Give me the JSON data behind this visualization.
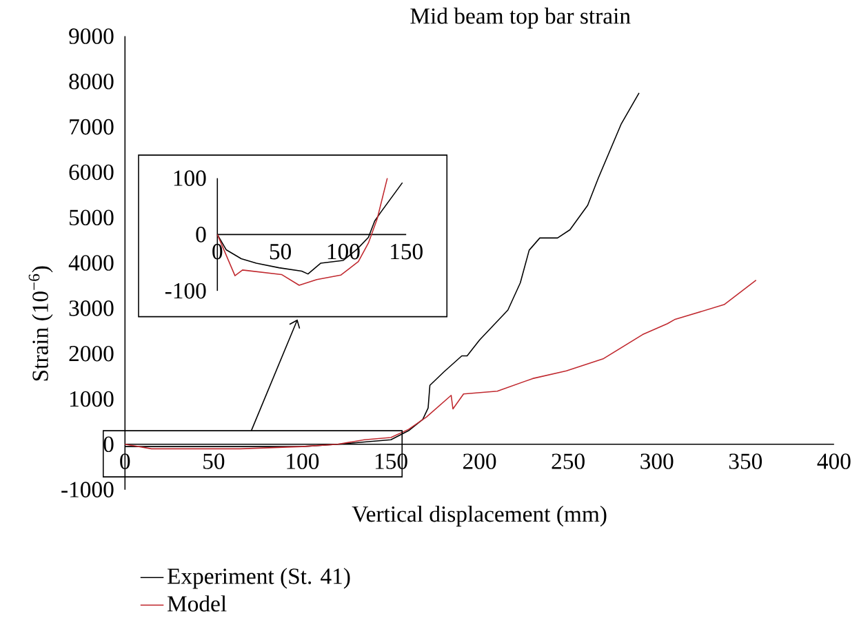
{
  "chart_data": [
    {
      "type": "line",
      "title": "Mid beam top bar strain",
      "xlabel": "Vertical displacement (mm)",
      "ylabel": "Strain (10$^{−6}$)",
      "xlim": [
        0,
        400
      ],
      "ylim": [
        -1000,
        9000
      ],
      "xticks": [
        0,
        50,
        100,
        150,
        200,
        250,
        300,
        350,
        400
      ],
      "yticks": [
        -1000,
        0,
        1000,
        2000,
        3000,
        4000,
        5000,
        6000,
        7000,
        8000,
        9000
      ],
      "legend": "bottom",
      "series": [
        {
          "name": "Experiment (St. 41)",
          "color": "#000000",
          "x": [
            0,
            20,
            50,
            70,
            100,
            120,
            135,
            150,
            160,
            168,
            171,
            172,
            180,
            190,
            193,
            200,
            216,
            223,
            228,
            234,
            244,
            251,
            261,
            267,
            280,
            290
          ],
          "values": [
            -50,
            -50,
            -50,
            -50,
            -50,
            0,
            50,
            100,
            300,
            550,
            800,
            1300,
            1600,
            1950,
            1950,
            2300,
            2960,
            3560,
            4280,
            4550,
            4550,
            4730,
            5270,
            5870,
            7070,
            7750
          ]
        },
        {
          "name": "Model",
          "color": "#c0282e",
          "x": [
            0,
            15,
            65,
            100,
            120,
            135,
            150,
            160,
            170,
            184,
            185,
            191,
            210,
            230,
            249,
            270,
            292,
            306,
            310,
            338,
            356
          ],
          "values": [
            0,
            -100,
            -100,
            -50,
            0,
            100,
            150,
            330,
            600,
            1080,
            780,
            1110,
            1170,
            1450,
            1620,
            1890,
            2420,
            2660,
            2750,
            3080,
            3620
          ]
        }
      ]
    },
    {
      "type": "line",
      "xlim": [
        0,
        150
      ],
      "ylim": [
        -100,
        100
      ],
      "xticks": [
        0,
        50,
        100,
        150
      ],
      "yticks": [
        -100,
        0,
        100
      ],
      "series": [
        {
          "color": "#000000",
          "x": [
            0,
            7,
            19,
            31,
            49,
            67,
            72,
            82,
            100,
            111,
            120,
            125,
            130,
            147
          ],
          "values": [
            0,
            -27,
            -43,
            -51,
            -59,
            -65,
            -70,
            -51,
            -46,
            -26,
            -5,
            24,
            40,
            92
          ]
        },
        {
          "color": "#c0282e",
          "x": [
            0,
            14,
            20,
            51,
            65,
            79,
            98,
            112,
            120,
            127,
            135
          ],
          "values": [
            0,
            -73,
            -63,
            -71,
            -90,
            -80,
            -72,
            -48,
            -15,
            28,
            100
          ]
        }
      ]
    }
  ]
}
